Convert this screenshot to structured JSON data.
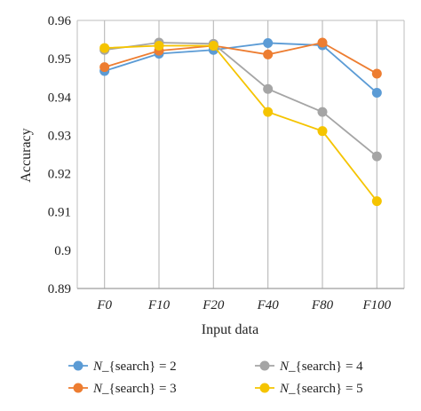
{
  "chart_data": {
    "type": "line",
    "xlabel": "Input data",
    "ylabel": "Accuracy",
    "categories": [
      "F0",
      "F10",
      "F20",
      "F40",
      "F80",
      "F100"
    ],
    "ylim": [
      0.89,
      0.96
    ],
    "yticks": [
      "0.89",
      "0.9",
      "0.91",
      "0.92",
      "0.93",
      "0.94",
      "0.95",
      "0.96"
    ],
    "grid": "vertical",
    "legend": "bottom",
    "series": [
      {
        "name_prefix": "N",
        "name_suffix": "_{search} = 2",
        "color": "#5b9bd5",
        "values": [
          0.9468,
          0.9513,
          0.9523,
          0.9541,
          0.9535,
          0.9411
        ]
      },
      {
        "name_prefix": "N",
        "name_suffix": "_{search} = 3",
        "color": "#ed7d31",
        "values": [
          0.9478,
          0.9521,
          0.9534,
          0.9511,
          0.9542,
          0.9461
        ]
      },
      {
        "name_prefix": "N",
        "name_suffix": "_{search} = 4",
        "color": "#a5a5a5",
        "values": [
          0.9523,
          0.9542,
          0.9539,
          0.9421,
          0.9361,
          0.9245
        ]
      },
      {
        "name_prefix": "N",
        "name_suffix": "_{search} = 5",
        "color": "#f5c400",
        "values": [
          0.9528,
          0.9534,
          0.9534,
          0.9361,
          0.9311,
          0.9128
        ]
      }
    ]
  }
}
